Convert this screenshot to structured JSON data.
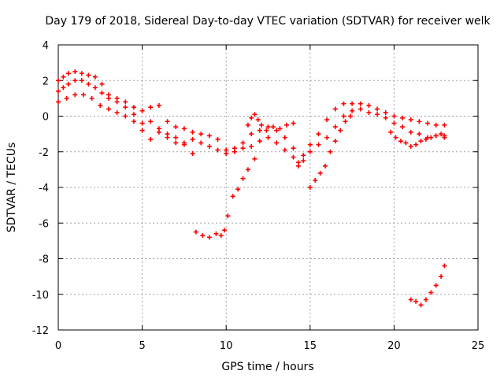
{
  "chart_data": {
    "type": "scatter",
    "title": "Day 179 of 2018, Sidereal Day-to-day VTEC variation (SDTVAR) for receiver welk",
    "xlabel": "GPS time / hours",
    "ylabel": "SDTVAR / TECUs",
    "xlim": [
      0,
      25
    ],
    "ylim": [
      -12,
      4
    ],
    "xticks": [
      0,
      5,
      10,
      15,
      20,
      25
    ],
    "yticks": [
      -12,
      -10,
      -8,
      -6,
      -4,
      -2,
      0,
      2,
      4
    ],
    "grid": true,
    "marker": "+",
    "color": "#ff0000",
    "series": [
      {
        "name": "main-band-1",
        "x": [
          0.0,
          0.3,
          0.6,
          1.0,
          1.4,
          1.8,
          2.2,
          2.6,
          3.0,
          3.5,
          4.0,
          4.5,
          5.0,
          5.5,
          6.0,
          6.5,
          7.0,
          7.5,
          8.0,
          8.5,
          9.0,
          9.5,
          10.0,
          10.5,
          11.0,
          11.5,
          12.0,
          12.5,
          13.0,
          13.5,
          14.0,
          14.3,
          14.6,
          15.0,
          15.5,
          16.0,
          16.5,
          17.0,
          17.5,
          18.0,
          18.5,
          19.0,
          19.5,
          20.0,
          20.5,
          21.0,
          21.5,
          22.0,
          22.5,
          23.0
        ],
        "y": [
          2.0,
          2.2,
          2.4,
          2.5,
          2.4,
          2.3,
          2.2,
          1.8,
          1.2,
          1.0,
          0.8,
          0.5,
          0.3,
          0.5,
          0.6,
          -0.3,
          -0.6,
          -0.7,
          -0.9,
          -1.0,
          -1.1,
          -1.3,
          -1.9,
          -1.8,
          -1.5,
          -1.0,
          -0.8,
          -0.6,
          -0.8,
          -1.2,
          -1.8,
          -2.6,
          -2.2,
          -1.6,
          -1.0,
          -0.2,
          0.4,
          0.7,
          0.7,
          0.7,
          0.6,
          0.4,
          0.2,
          0.0,
          -0.1,
          -0.2,
          -0.3,
          -0.4,
          -0.5,
          -0.5
        ]
      },
      {
        "name": "main-band-2",
        "x": [
          0.0,
          0.3,
          0.6,
          1.0,
          1.4,
          1.8,
          2.2,
          2.6,
          3.0,
          3.5,
          4.0,
          4.5,
          5.0,
          5.5,
          6.0,
          6.5,
          7.0,
          7.5,
          8.0,
          8.5,
          9.0,
          9.5,
          10.0,
          10.5,
          11.0,
          11.5,
          12.0,
          12.5,
          13.0,
          13.5,
          14.0,
          14.3,
          14.6,
          15.0,
          15.5,
          16.0,
          16.5,
          17.0,
          17.5,
          18.0,
          18.5,
          19.0,
          19.5,
          20.0,
          20.5,
          21.0,
          21.5,
          22.0,
          22.5,
          23.0
        ],
        "y": [
          1.4,
          1.6,
          1.8,
          2.0,
          2.0,
          1.8,
          1.6,
          1.3,
          1.0,
          0.8,
          0.5,
          0.1,
          -0.4,
          -0.3,
          -0.7,
          -1.2,
          -1.5,
          -1.6,
          -1.3,
          -1.5,
          -1.7,
          -1.9,
          -2.1,
          -2.0,
          -1.8,
          -1.7,
          -1.4,
          -1.2,
          -1.5,
          -1.9,
          -2.3,
          -2.8,
          -2.5,
          -2.0,
          -1.6,
          -1.2,
          -0.6,
          0.0,
          0.3,
          0.4,
          0.2,
          0.1,
          -0.1,
          -0.4,
          -0.6,
          -0.9,
          -1.0,
          -1.2,
          -1.1,
          -1.2
        ]
      },
      {
        "name": "lower-band",
        "x": [
          0.0,
          0.5,
          1.0,
          1.5,
          2.0,
          2.5,
          3.0,
          3.5,
          4.0,
          4.5,
          5.0,
          5.5,
          6.0,
          6.5,
          7.0,
          7.5,
          8.0
        ],
        "y": [
          0.8,
          1.0,
          1.2,
          1.2,
          1.0,
          0.6,
          0.4,
          0.2,
          0.0,
          -0.3,
          -0.8,
          -1.3,
          -0.9,
          -1.0,
          -1.2,
          -1.5,
          -2.1
        ]
      },
      {
        "name": "mid-segment",
        "x": [
          8.2,
          8.6,
          9.0,
          9.4,
          9.7,
          9.9,
          10.1,
          10.4,
          10.7,
          11.0,
          11.3,
          11.7
        ],
        "y": [
          -6.5,
          -6.7,
          -6.8,
          -6.6,
          -6.7,
          -6.4,
          -5.6,
          -4.5,
          -4.1,
          -3.5,
          -3.0,
          -2.4
        ]
      },
      {
        "name": "spike-segment",
        "x": [
          11.3,
          11.5,
          11.7,
          11.9,
          12.1,
          12.4,
          12.8,
          13.2,
          13.6,
          14.0
        ],
        "y": [
          -0.5,
          -0.1,
          0.1,
          -0.2,
          -0.5,
          -0.8,
          -0.6,
          -0.7,
          -0.5,
          -0.4
        ]
      },
      {
        "name": "rise-segment",
        "x": [
          15.0,
          15.3,
          15.6,
          15.9,
          16.2,
          16.5,
          16.8,
          17.1,
          17.4
        ],
        "y": [
          -4.0,
          -3.6,
          -3.2,
          -2.8,
          -2.0,
          -1.4,
          -0.8,
          -0.3,
          0.0
        ]
      },
      {
        "name": "late-band",
        "x": [
          19.8,
          20.1,
          20.4,
          20.7,
          21.0,
          21.3,
          21.6,
          21.9,
          22.2,
          22.5,
          22.8,
          23.0
        ],
        "y": [
          -0.9,
          -1.2,
          -1.4,
          -1.5,
          -1.7,
          -1.6,
          -1.4,
          -1.3,
          -1.2,
          -1.1,
          -1.0,
          -1.1
        ]
      },
      {
        "name": "late-segment",
        "x": [
          21.0,
          21.3,
          21.6,
          21.9,
          22.2,
          22.5,
          22.8,
          23.0
        ],
        "y": [
          -10.3,
          -10.4,
          -10.6,
          -10.3,
          -9.9,
          -9.5,
          -9.0,
          -8.4
        ]
      }
    ]
  }
}
